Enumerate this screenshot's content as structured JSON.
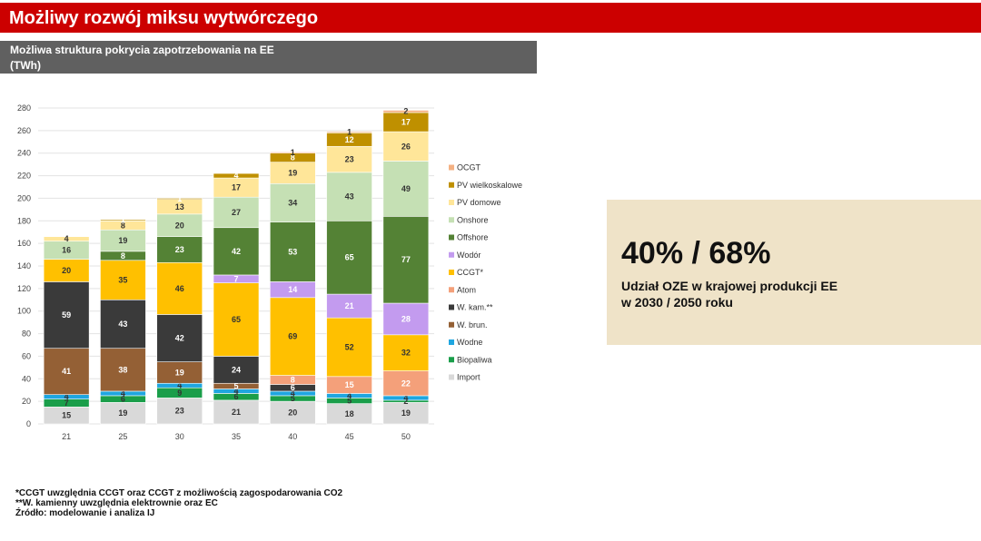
{
  "header": {
    "title": "Możliwy rozwój miksu wytwórczego"
  },
  "subheader": {
    "line1": "Możliwa struktura pokrycia zapotrzebowania na EE",
    "line2": "(TWh)"
  },
  "kpi": {
    "value": "40% / 68%",
    "line1": "Udział OZE w krajowej produkcji EE",
    "line2": "w 2030 / 2050 roku"
  },
  "footnotes": [
    "*CCGT uwzględnia CCGT oraz CCGT z możliwością zagospodarowania CO2",
    "**W. kamienny uwzględnia elektrownie oraz EC",
    "Źródło: modelowanie i analiza IJ"
  ],
  "chart_data": {
    "type": "bar",
    "stacked": true,
    "categories": [
      "21",
      "25",
      "30",
      "35",
      "40",
      "45",
      "50"
    ],
    "ylim": [
      0,
      280
    ],
    "yticks": [
      0,
      20,
      40,
      60,
      80,
      100,
      120,
      140,
      160,
      180,
      200,
      220,
      240,
      260,
      280
    ],
    "grid": true,
    "legend_position": "right",
    "series": [
      {
        "name": "Import",
        "color": "#d9d9d9",
        "labelColor": "#333333",
        "values": [
          15,
          19,
          23,
          21,
          20,
          18,
          19
        ]
      },
      {
        "name": "Biopaliwa",
        "color": "#1a9e4a",
        "labelColor": "#333333",
        "values": [
          7,
          6,
          9,
          6,
          5,
          5,
          2
        ]
      },
      {
        "name": "Wodne",
        "color": "#1fa6e0",
        "labelColor": "#333333",
        "values": [
          4,
          4,
          4,
          4,
          4,
          4,
          4
        ]
      },
      {
        "name": "W. brun.",
        "color": "#946035",
        "labelColor": "#ffffff",
        "values": [
          41,
          38,
          19,
          5,
          0,
          0,
          0
        ]
      },
      {
        "name": "W. kam.**",
        "color": "#3a3a3a",
        "labelColor": "#ffffff",
        "values": [
          59,
          43,
          42,
          24,
          6,
          0,
          0
        ]
      },
      {
        "name": "Atom",
        "color": "#f4a07a",
        "labelColor": "#ffffff",
        "values": [
          0,
          0,
          0,
          0,
          8,
          15,
          22
        ]
      },
      {
        "name": "CCGT*",
        "color": "#ffc000",
        "labelColor": "#333333",
        "values": [
          20,
          35,
          46,
          65,
          69,
          52,
          32
        ]
      },
      {
        "name": "Wodór",
        "color": "#c39bef",
        "labelColor": "#ffffff",
        "values": [
          0,
          0,
          0,
          7,
          14,
          21,
          28
        ]
      },
      {
        "name": "Offshore",
        "color": "#548235",
        "labelColor": "#ffffff",
        "values": [
          0,
          8,
          23,
          42,
          53,
          65,
          77
        ]
      },
      {
        "name": "Onshore",
        "color": "#c5e0b4",
        "labelColor": "#333333",
        "values": [
          16,
          19,
          20,
          27,
          34,
          43,
          49
        ]
      },
      {
        "name": "PV domowe",
        "color": "#ffe699",
        "labelColor": "#333333",
        "values": [
          4,
          8,
          13,
          17,
          19,
          23,
          26
        ]
      },
      {
        "name": "PV wielkoskalowe",
        "color": "#bf9000",
        "labelColor": "#ffffff",
        "values": [
          0,
          1,
          1,
          4,
          8,
          12,
          17
        ]
      },
      {
        "name": "OCGT",
        "color": "#f4b183",
        "labelColor": "#333333",
        "values": [
          0,
          0,
          0,
          0,
          1,
          1,
          2
        ]
      }
    ],
    "legend_order": [
      "OCGT",
      "PV wielkoskalowe",
      "PV domowe",
      "Onshore",
      "Offshore",
      "Wodór",
      "CCGT*",
      "Atom",
      "W. kam.**",
      "W. brun.",
      "Wodne",
      "Biopaliwa",
      "Import"
    ]
  }
}
